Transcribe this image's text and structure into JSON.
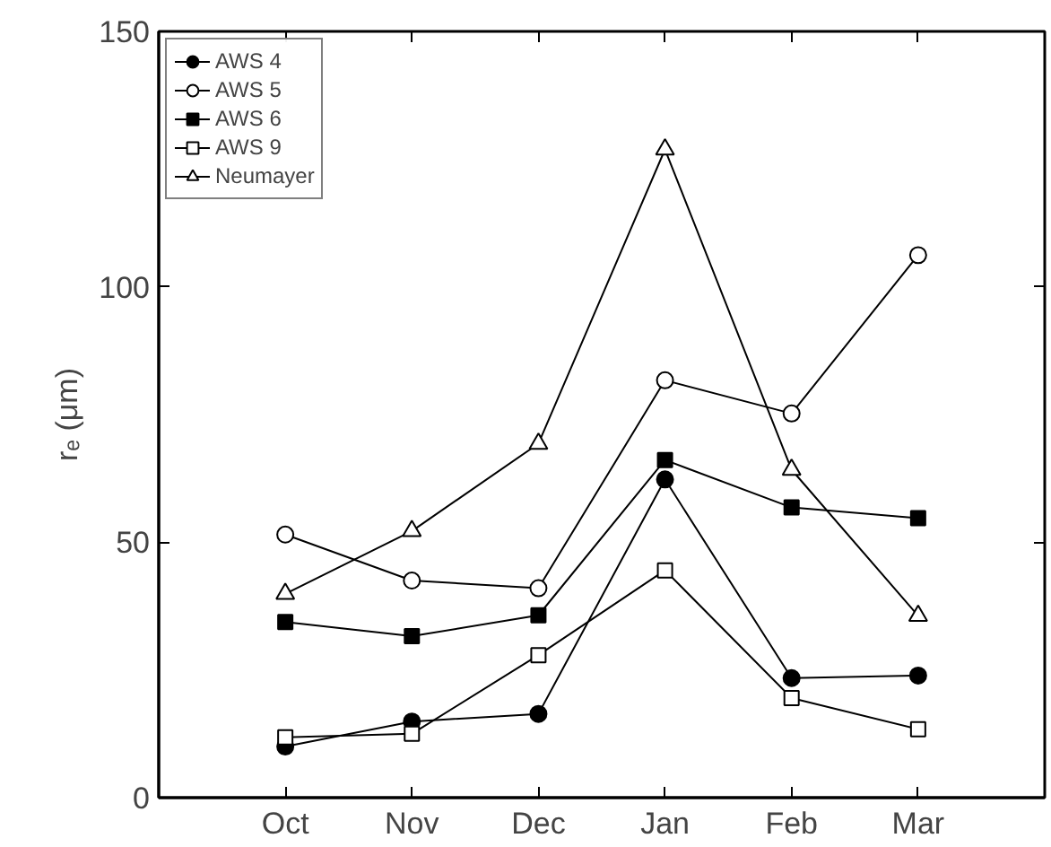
{
  "chart_data": {
    "type": "line",
    "ylabel": "rₑ (μm)",
    "categories": [
      "Oct",
      "Nov",
      "Dec",
      "Jan",
      "Feb",
      "Mar"
    ],
    "ylim": [
      0,
      150
    ],
    "yticks": [
      0,
      50,
      100,
      150
    ],
    "legend": "top left",
    "grid": false,
    "series": [
      {
        "name": "AWS 4",
        "color": "#000000",
        "marker": "circle",
        "values": [
          10.0,
          14.9,
          16.4,
          62.3,
          23.4,
          23.9
        ]
      },
      {
        "name": "AWS 5",
        "color": "#000000",
        "marker": "circle_open",
        "values": [
          51.5,
          42.5,
          41.0,
          81.7,
          75.2,
          106.2
        ]
      },
      {
        "name": "AWS 6",
        "color": "#000000",
        "marker": "square",
        "values": [
          34.4,
          31.6,
          35.7,
          66.1,
          56.8,
          54.7
        ]
      },
      {
        "name": "AWS 9",
        "color": "#000000",
        "marker": "square_open",
        "values": [
          11.8,
          12.5,
          27.9,
          44.5,
          19.5,
          13.4
        ]
      },
      {
        "name": "Neumayer",
        "color": "#000000",
        "marker": "triangle_open",
        "values": [
          39.9,
          52.2,
          69.3,
          126.9,
          64.2,
          35.6
        ]
      }
    ]
  }
}
